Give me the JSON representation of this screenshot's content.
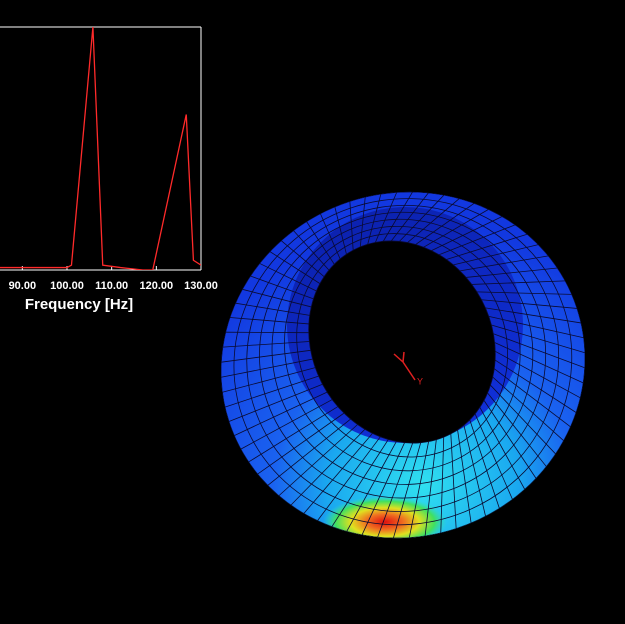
{
  "chart_data": {
    "type": "line",
    "x_label": "Frequency [Hz]",
    "x": [
      85,
      100,
      101,
      105.8,
      108,
      112,
      117,
      119.2,
      126.7,
      128.3,
      130
    ],
    "values": [
      0.01,
      0.01,
      0.02,
      1.0,
      0.02,
      0.01,
      0.0,
      0.0,
      0.64,
      0.04,
      0.02
    ],
    "color": "#ff2a2a",
    "xlim": [
      85,
      130
    ],
    "ylim": [
      0,
      1
    ],
    "xticks": [
      {
        "value": 90,
        "label": "90.00"
      },
      {
        "value": 100,
        "label": "100.00"
      },
      {
        "value": 110,
        "label": "110.00"
      },
      {
        "value": 120,
        "label": "120.00"
      },
      {
        "value": 130,
        "label": "130.00"
      }
    ]
  },
  "triad": {
    "y_label": "Y"
  }
}
